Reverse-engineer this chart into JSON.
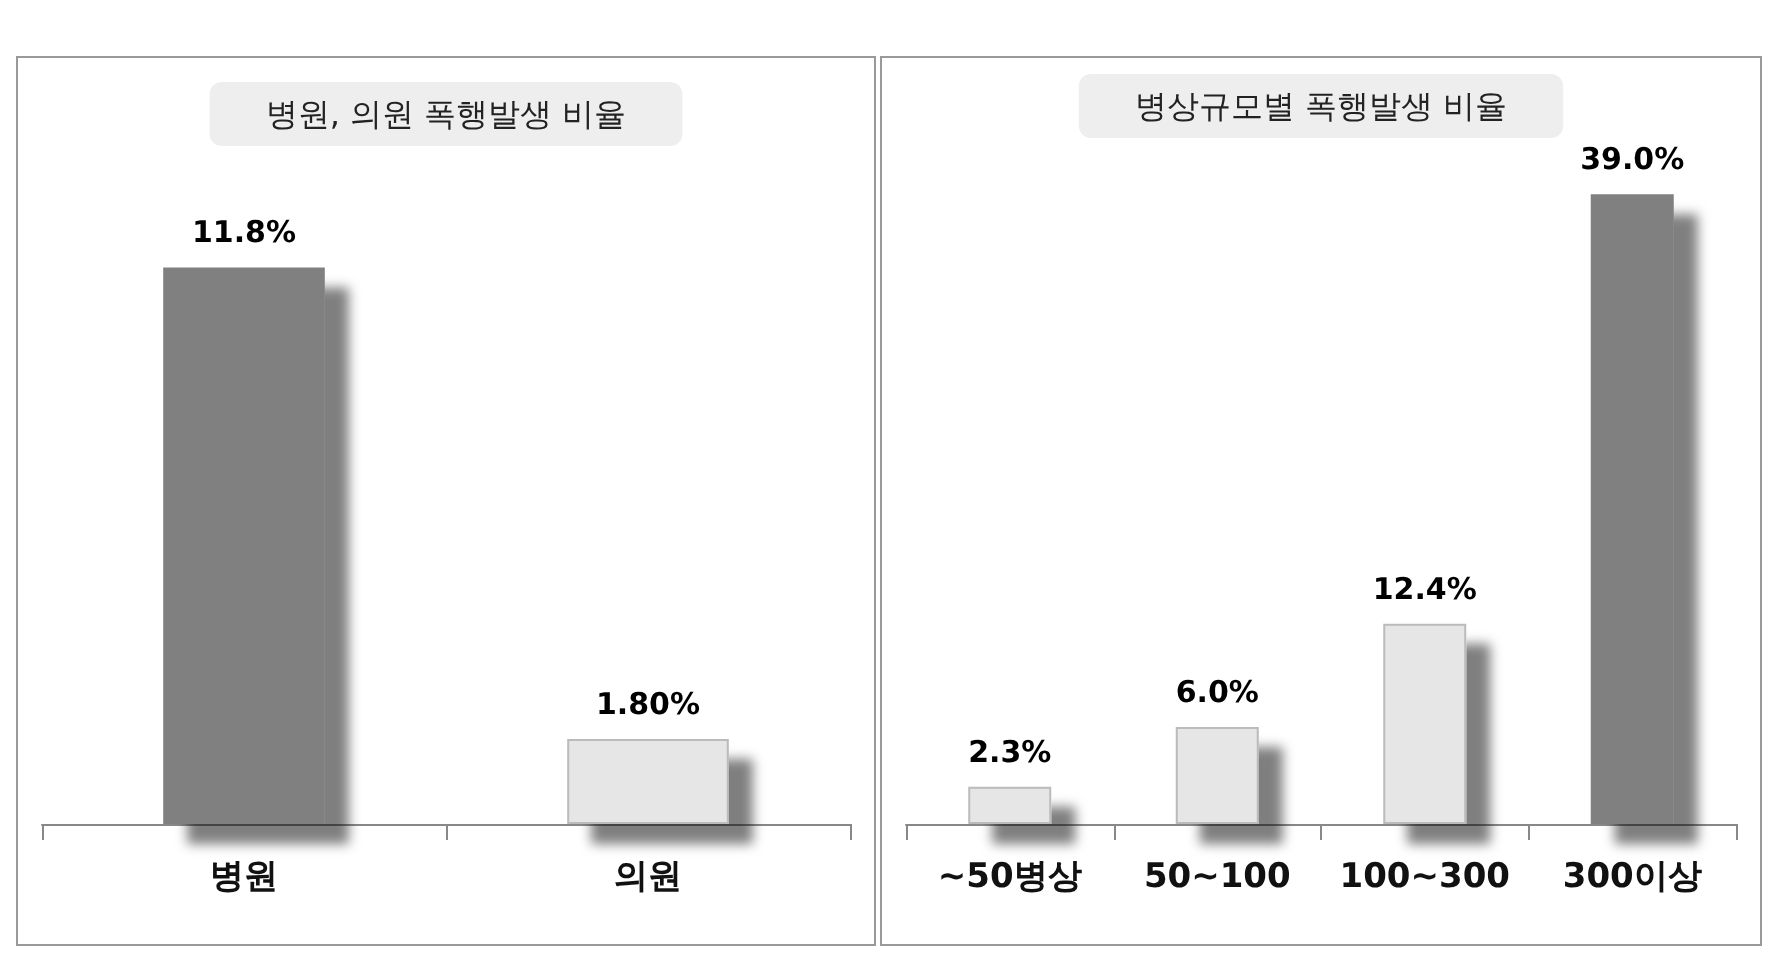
{
  "chart_data": [
    {
      "type": "bar",
      "title": "병원, 의원 폭행발생 비율",
      "categories": [
        "병원",
        "의원"
      ],
      "values": [
        11.8,
        1.8
      ],
      "colors": [
        "#808080",
        "#e6e6e6"
      ],
      "value_labels": [
        "11.8%",
        "1.80%"
      ],
      "tick_labels": "x"
    },
    {
      "type": "bar",
      "title": "병상규모별 폭행발생 비율",
      "categories": [
        "~50병상",
        "50~100",
        "100~300",
        "300이상"
      ],
      "values": [
        2.3,
        6.0,
        12.4,
        39.0
      ],
      "colors": [
        "#e6e6e6",
        "#e6e6e6",
        "#e6e6e6",
        "#808080"
      ],
      "value_labels": [
        "2.3%",
        "6.0%",
        "12.4%",
        "39.0%"
      ],
      "tick_labels": "x"
    }
  ]
}
